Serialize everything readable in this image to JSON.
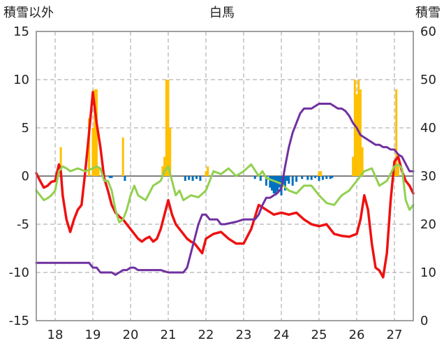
{
  "chart_data": {
    "type": "line",
    "title": "白馬",
    "ylabel_left": "積雪以外",
    "ylabel_right": "積雪",
    "ylim_left": [
      -15,
      15
    ],
    "ylim_right": [
      0,
      60
    ],
    "yticks_left": [
      "15",
      "10",
      "5",
      "0",
      "-5",
      "-10",
      "-15"
    ],
    "yticks_right": [
      "60",
      "50",
      "40",
      "30",
      "20",
      "10",
      "0"
    ],
    "xlim": [
      17.5,
      27.5
    ],
    "xticks": [
      "18",
      "19",
      "20",
      "21",
      "22",
      "23",
      "24",
      "25",
      "26",
      "27"
    ],
    "grid": true,
    "series": [
      {
        "name": "",
        "color": "#ee1111",
        "axis": "left",
        "kind": "line",
        "x": [
          17.5,
          17.6,
          17.7,
          17.8,
          17.9,
          18.0,
          18.1,
          18.15,
          18.2,
          18.3,
          18.4,
          18.5,
          18.6,
          18.7,
          18.8,
          18.9,
          19.0,
          19.1,
          19.2,
          19.3,
          19.4,
          19.5,
          19.6,
          19.7,
          19.8,
          19.9,
          20.0,
          20.1,
          20.2,
          20.3,
          20.4,
          20.5,
          20.6,
          20.7,
          20.8,
          20.9,
          21.0,
          21.1,
          21.2,
          21.3,
          21.4,
          21.5,
          21.6,
          21.7,
          21.8,
          21.9,
          22.0,
          22.2,
          22.4,
          22.6,
          22.8,
          23.0,
          23.2,
          23.4,
          23.6,
          23.8,
          24.0,
          24.2,
          24.4,
          24.6,
          24.8,
          25.0,
          25.2,
          25.4,
          25.6,
          25.8,
          26.0,
          26.1,
          26.2,
          26.3,
          26.4,
          26.5,
          26.6,
          26.7,
          26.8,
          26.9,
          27.0,
          27.1,
          27.2,
          27.3,
          27.4,
          27.5
        ],
        "y": [
          0.3,
          -0.5,
          -1.2,
          -1.0,
          -0.6,
          -0.5,
          1.2,
          0.5,
          -2.0,
          -4.5,
          -5.8,
          -4.5,
          -3.5,
          -3.0,
          0.5,
          4.5,
          8.7,
          5.5,
          3.0,
          -0.2,
          -1.5,
          -3.0,
          -3.8,
          -4.2,
          -4.5,
          -5.0,
          -5.5,
          -6.0,
          -6.5,
          -6.8,
          -6.5,
          -6.3,
          -6.8,
          -6.5,
          -5.5,
          -4.0,
          -2.5,
          -4.0,
          -5.0,
          -5.5,
          -6.0,
          -6.5,
          -6.8,
          -7.0,
          -7.5,
          -8.0,
          -6.5,
          -6.0,
          -5.8,
          -6.5,
          -7.0,
          -7.0,
          -5.5,
          -3.0,
          -3.5,
          -4.0,
          -3.8,
          -4.0,
          -3.8,
          -4.5,
          -5.0,
          -5.2,
          -5.0,
          -6.0,
          -6.2,
          -6.3,
          -6.0,
          -4.5,
          -2.0,
          -3.5,
          -7.0,
          -9.5,
          -9.8,
          -10.5,
          -8.0,
          -2.5,
          1.5,
          2.0,
          0.5,
          -0.5,
          -1.0,
          -1.8
        ]
      },
      {
        "name": "",
        "color": "#92d050",
        "axis": "left",
        "kind": "line",
        "x": [
          17.5,
          17.6,
          17.7,
          17.8,
          17.9,
          18.0,
          18.1,
          18.2,
          18.3,
          18.4,
          18.6,
          18.8,
          19.0,
          19.1,
          19.2,
          19.3,
          19.4,
          19.5,
          19.6,
          19.7,
          19.8,
          19.9,
          20.0,
          20.1,
          20.2,
          20.4,
          20.6,
          20.8,
          20.9,
          21.0,
          21.1,
          21.2,
          21.3,
          21.4,
          21.6,
          21.8,
          22.0,
          22.1,
          22.2,
          22.4,
          22.6,
          22.8,
          23.0,
          23.2,
          23.4,
          23.5,
          23.6,
          23.8,
          24.0,
          24.2,
          24.4,
          24.6,
          24.8,
          25.0,
          25.2,
          25.4,
          25.6,
          25.8,
          26.0,
          26.1,
          26.2,
          26.4,
          26.6,
          26.8,
          27.0,
          27.1,
          27.2,
          27.3,
          27.4,
          27.5
        ],
        "y": [
          -1.5,
          -2.0,
          -2.5,
          -2.3,
          -2.0,
          -1.5,
          0.5,
          1.0,
          0.8,
          0.5,
          0.8,
          0.5,
          0.8,
          1.0,
          0.8,
          -0.5,
          -0.5,
          -1.5,
          -3.5,
          -4.8,
          -4.5,
          -3.5,
          -2.0,
          -1.0,
          -2.0,
          -2.5,
          -1.0,
          -0.5,
          0.5,
          1.0,
          -0.5,
          -2.0,
          -1.5,
          -2.5,
          -2.0,
          -2.2,
          -1.5,
          -0.5,
          0.5,
          0.2,
          0.8,
          0.0,
          0.5,
          1.2,
          0.0,
          0.5,
          -0.2,
          -0.5,
          -0.8,
          -1.5,
          -1.8,
          -1.0,
          -1.0,
          -2.0,
          -2.8,
          -3.0,
          -2.0,
          -1.5,
          -0.5,
          0.0,
          0.5,
          0.8,
          -1.0,
          -0.5,
          1.0,
          1.2,
          0.8,
          -2.5,
          -3.5,
          -3.0
        ]
      },
      {
        "name": "",
        "color": "#7030a0",
        "axis": "right",
        "kind": "line",
        "x": [
          17.5,
          18.0,
          18.5,
          18.9,
          19.0,
          19.1,
          19.2,
          19.5,
          19.6,
          19.7,
          19.8,
          19.9,
          20.0,
          20.1,
          20.2,
          20.5,
          20.8,
          21.0,
          21.2,
          21.4,
          21.5,
          21.6,
          21.7,
          21.8,
          21.9,
          22.0,
          22.1,
          22.3,
          22.4,
          22.5,
          22.8,
          23.0,
          23.1,
          23.2,
          23.3,
          23.4,
          23.5,
          23.6,
          23.7,
          23.8,
          23.9,
          24.0,
          24.1,
          24.2,
          24.3,
          24.4,
          24.5,
          24.6,
          24.7,
          24.8,
          24.9,
          25.0,
          25.1,
          25.2,
          25.3,
          25.4,
          25.5,
          25.6,
          25.7,
          25.8,
          25.9,
          26.0,
          26.1,
          26.2,
          26.3,
          26.4,
          26.5,
          26.6,
          26.7,
          26.8,
          26.9,
          27.0,
          27.1,
          27.2,
          27.3,
          27.4,
          27.5
        ],
        "y": [
          12,
          12,
          12,
          12,
          11,
          11,
          10,
          10,
          9.5,
          10,
          10.5,
          10.5,
          11,
          11,
          10.5,
          10.5,
          10.5,
          10,
          10,
          10,
          11,
          14,
          17,
          20,
          22,
          22,
          21,
          21,
          20,
          20,
          20.5,
          21,
          21,
          21,
          21,
          22,
          24,
          25.5,
          25.5,
          26,
          26.5,
          27.5,
          32,
          36,
          39,
          41,
          43,
          44,
          44,
          44,
          44.5,
          45,
          45,
          45,
          45,
          44.5,
          44,
          44,
          43.5,
          42.5,
          41,
          40,
          38.5,
          38,
          37.5,
          37,
          36.5,
          36.5,
          36,
          36,
          35.5,
          35.5,
          34.5,
          34,
          32.5,
          31,
          31
        ]
      },
      {
        "name": "",
        "color": "#ffc000",
        "axis": "left",
        "kind": "bar",
        "x": [
          18.15,
          18.9,
          19.0,
          19.05,
          19.1,
          19.15,
          19.8,
          20.85,
          20.9,
          20.95,
          21.0,
          21.05,
          22.0,
          22.05,
          25.0,
          25.05,
          25.9,
          25.95,
          26.0,
          26.05,
          26.1,
          26.15,
          27.0,
          27.05,
          27.1
        ],
        "y": [
          3,
          6,
          5,
          9,
          9,
          1,
          4,
          1,
          2,
          10,
          10,
          5,
          0.5,
          1,
          0.5,
          0.5,
          2,
          10,
          8.5,
          10,
          9,
          3,
          0.5,
          9,
          1
        ]
      },
      {
        "name": "",
        "color": "#0070c0",
        "axis": "left",
        "kind": "bar",
        "x": [
          19.45,
          19.5,
          19.85,
          21.45,
          21.55,
          21.65,
          21.75,
          21.85,
          23.3,
          23.45,
          23.6,
          23.7,
          23.75,
          23.8,
          23.85,
          23.9,
          23.95,
          24.0,
          24.05,
          24.1,
          24.15,
          24.2,
          24.3,
          24.4,
          24.55,
          24.7,
          24.8,
          24.9,
          25.0,
          25.1,
          25.2,
          25.3,
          25.35
        ],
        "y": [
          -0.2,
          -0.2,
          -0.5,
          -0.5,
          -0.4,
          -0.5,
          -0.3,
          -0.5,
          -0.3,
          -0.5,
          -1.0,
          -1.2,
          -1.5,
          -1.8,
          -2.0,
          -1.6,
          -1.2,
          -2.0,
          -1.0,
          -1.5,
          -0.5,
          -0.8,
          -1.0,
          -0.6,
          -0.3,
          -0.4,
          -0.4,
          -0.2,
          -0.5,
          -0.4,
          -0.3,
          -0.3,
          -0.2
        ]
      }
    ]
  }
}
